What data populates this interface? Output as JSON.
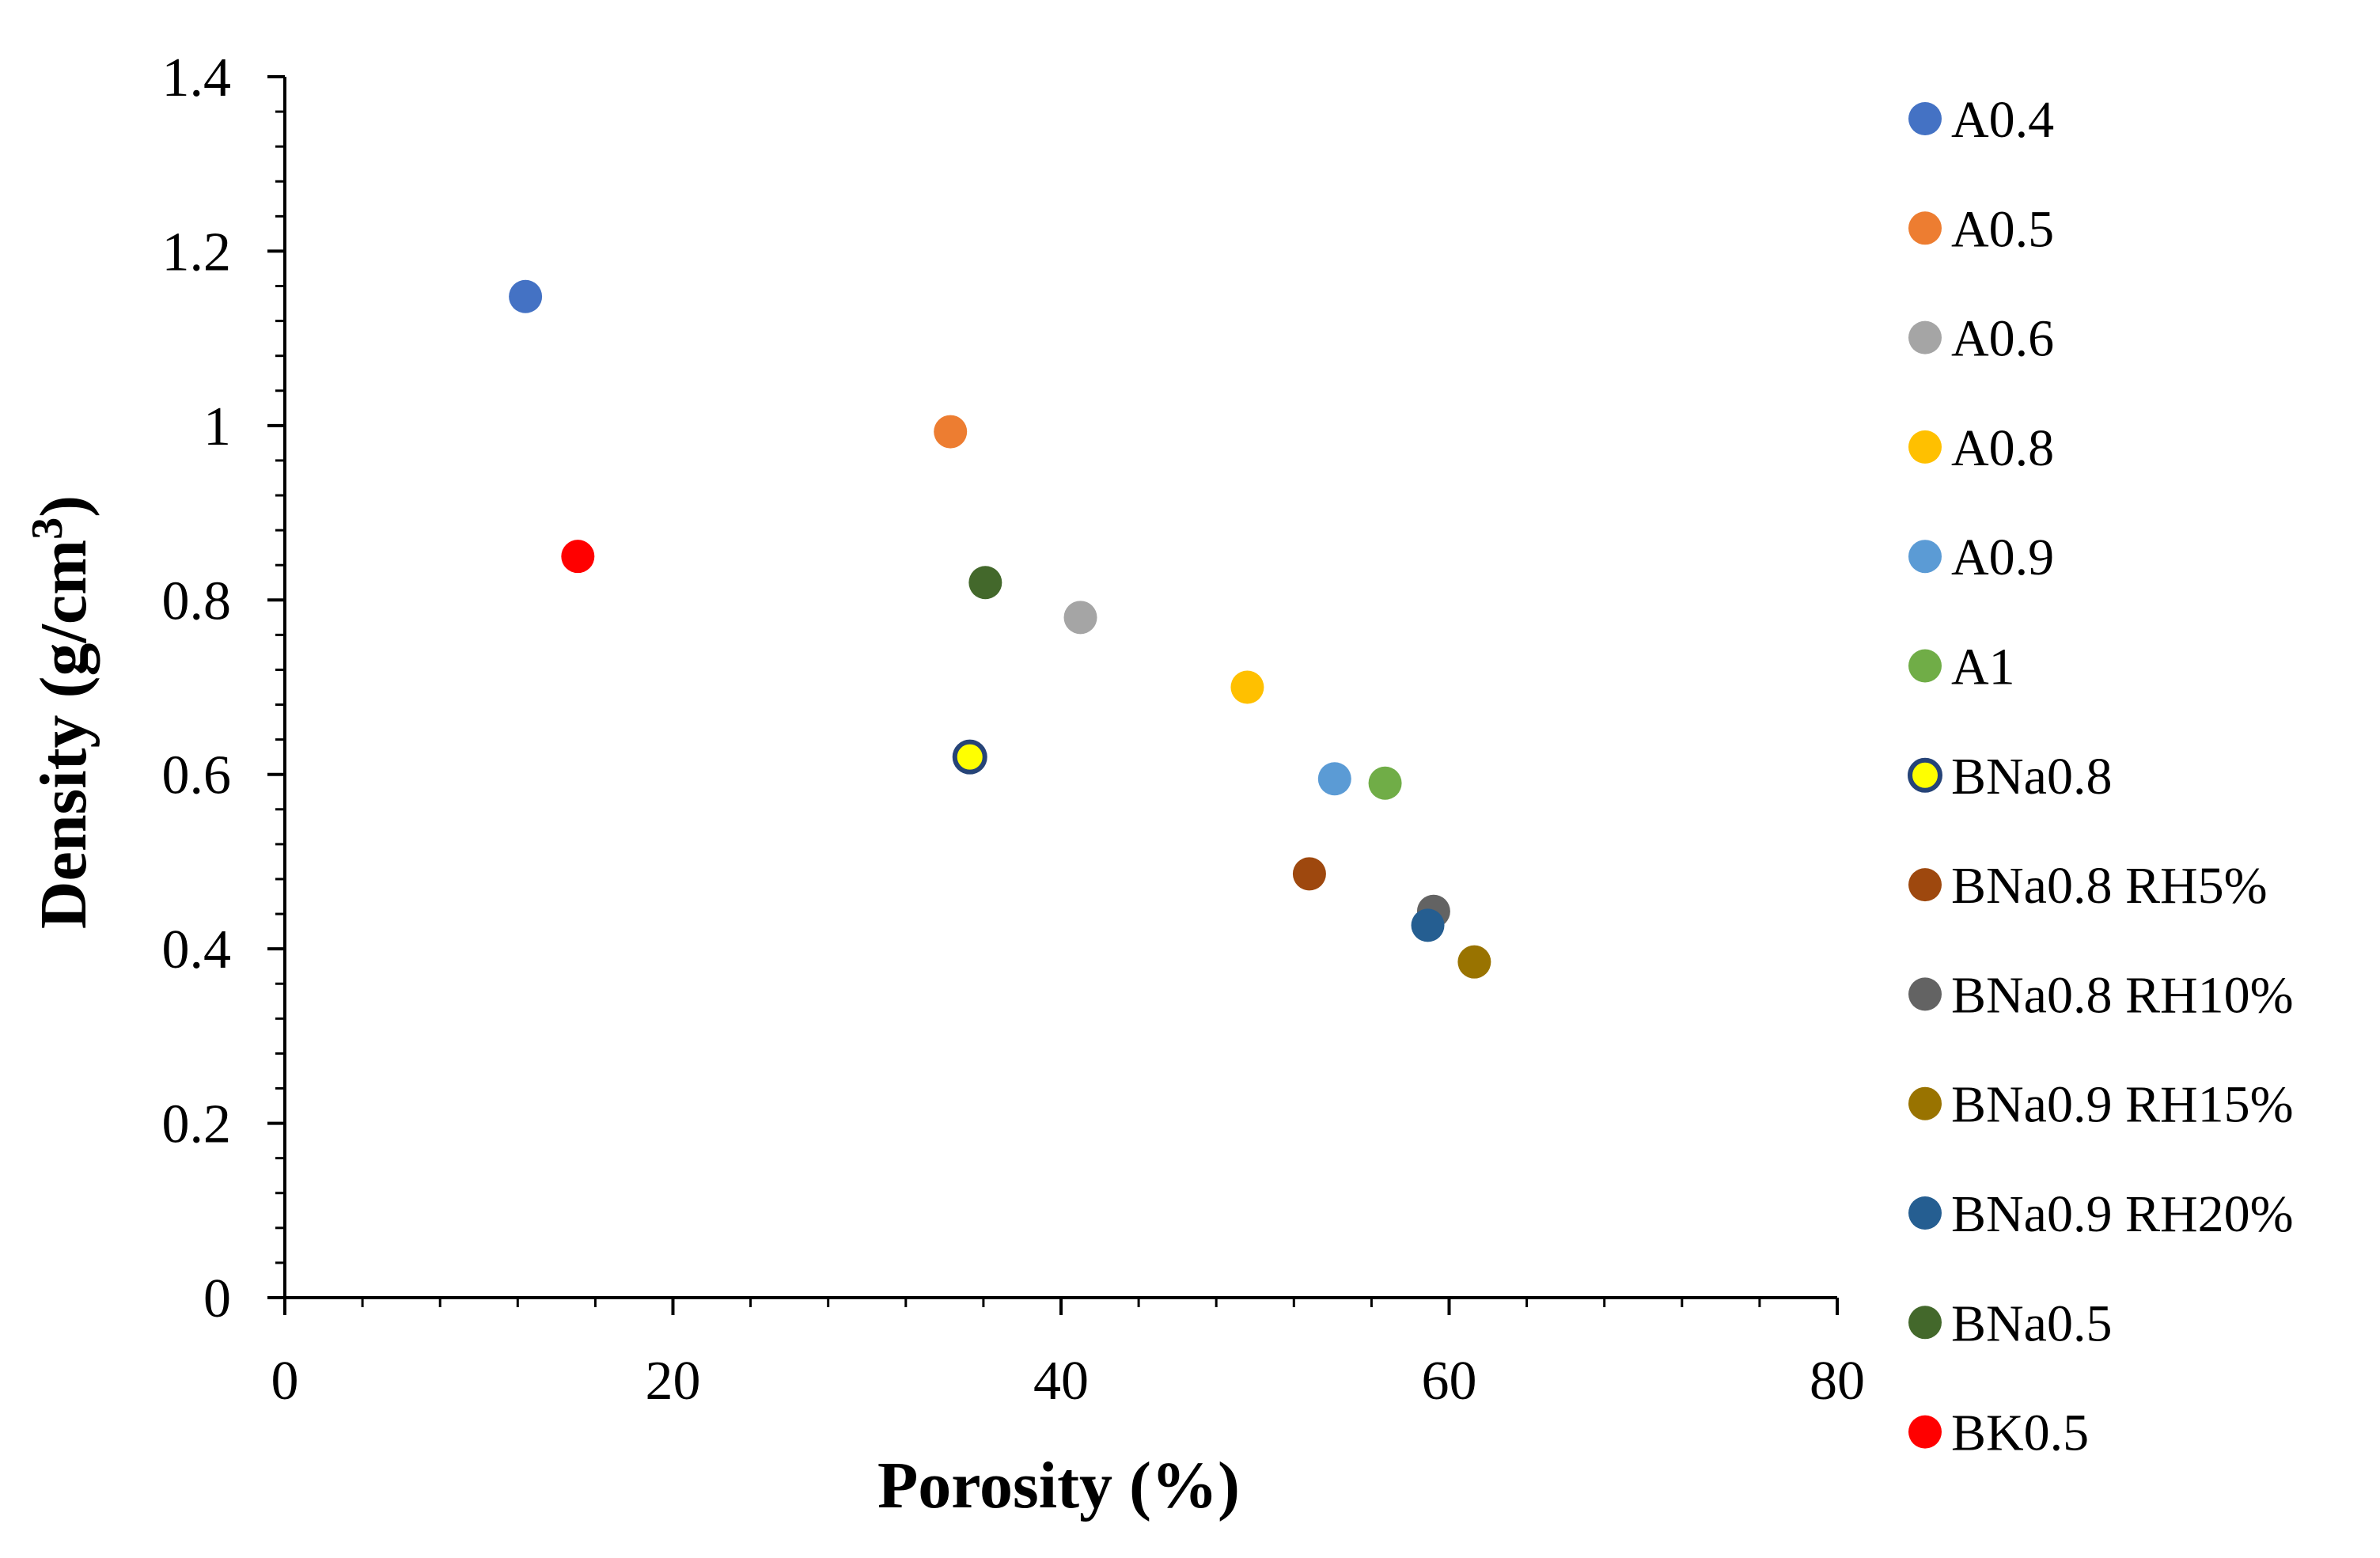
{
  "chart_data": {
    "type": "scatter",
    "title": "",
    "xlabel": "Porosity (%)",
    "ylabel_main": "Density (g/cm",
    "ylabel_sup": "3",
    "ylabel_close": ")",
    "xlim": [
      0,
      80
    ],
    "ylim": [
      0,
      1.4
    ],
    "xticks": [
      0,
      20,
      40,
      60,
      80
    ],
    "yticks": [
      0,
      0.2,
      0.4,
      0.6,
      0.8,
      1,
      1.2,
      1.4
    ],
    "xtick_labels": [
      "0",
      "20",
      "40",
      "60",
      "80"
    ],
    "ytick_labels": [
      "0",
      "0.2",
      "0.4",
      "0.6",
      "0.8",
      "1",
      "1.2",
      "1.4"
    ],
    "x_minor_step": 4,
    "y_minor_step": 0.04,
    "grid": false,
    "legend_position": "right",
    "series": [
      {
        "name": "A0.4",
        "x": 12.4,
        "y": 1.148,
        "color": "#4472C4"
      },
      {
        "name": "A0.5",
        "x": 34.3,
        "y": 0.993,
        "color": "#ED7D31"
      },
      {
        "name": "A0.6",
        "x": 41.0,
        "y": 0.78,
        "color": "#A5A5A5"
      },
      {
        "name": "A0.8",
        "x": 49.6,
        "y": 0.7,
        "color": "#FFC000"
      },
      {
        "name": "A0.9",
        "x": 54.1,
        "y": 0.595,
        "color": "#5B9BD5"
      },
      {
        "name": "A1",
        "x": 56.7,
        "y": 0.59,
        "color": "#70AD47"
      },
      {
        "name": "BNa0.8",
        "x": 35.3,
        "y": 0.62,
        "color": "#FFFF00",
        "outline": "#264478"
      },
      {
        "name": "BNa0.8 RH5%",
        "x": 52.8,
        "y": 0.486,
        "color": "#9E480E"
      },
      {
        "name": "BNa0.8 RH10%",
        "x": 59.2,
        "y": 0.443,
        "color": "#636363"
      },
      {
        "name": "BNa0.9 RH15%",
        "x": 61.3,
        "y": 0.385,
        "color": "#997300"
      },
      {
        "name": "BNa0.9 RH20%",
        "x": 58.9,
        "y": 0.427,
        "color": "#255E91"
      },
      {
        "name": "BNa0.5",
        "x": 36.1,
        "y": 0.82,
        "color": "#43682B"
      },
      {
        "name": "BK0.5",
        "x": 15.1,
        "y": 0.85,
        "color": "#FF0000"
      }
    ]
  }
}
